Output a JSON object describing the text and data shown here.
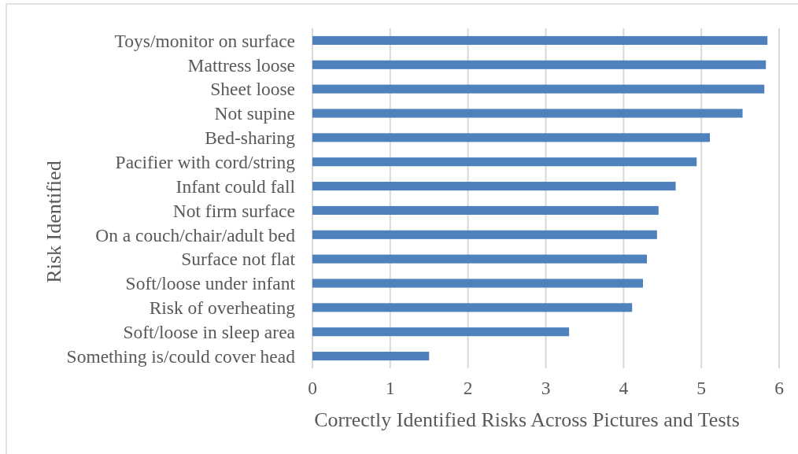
{
  "chart_data": {
    "type": "bar",
    "orientation": "horizontal",
    "xlabel": "Correctly Identified Risks Across Pictures and Tests",
    "ylabel": "Risk Identified",
    "categories": [
      "Toys/monitor on surface",
      "Mattress loose",
      "Sheet loose",
      "Not supine",
      "Bed-sharing",
      "Pacifier with cord/string",
      "Infant could fall",
      "Not firm surface",
      "On a couch/chair/adult bed",
      "Surface not flat",
      "Soft/loose under infant",
      "Risk of overheating",
      "Soft/loose in sleep area",
      "Something is/could cover head"
    ],
    "values": [
      5.85,
      5.83,
      5.81,
      5.53,
      5.11,
      4.94,
      4.67,
      4.45,
      4.43,
      4.3,
      4.25,
      4.11,
      3.3,
      1.5
    ],
    "color": "#4f81bd",
    "xlim": [
      0,
      6
    ],
    "xticks": [
      0,
      1,
      2,
      3,
      4,
      5,
      6
    ],
    "grid": "x"
  }
}
